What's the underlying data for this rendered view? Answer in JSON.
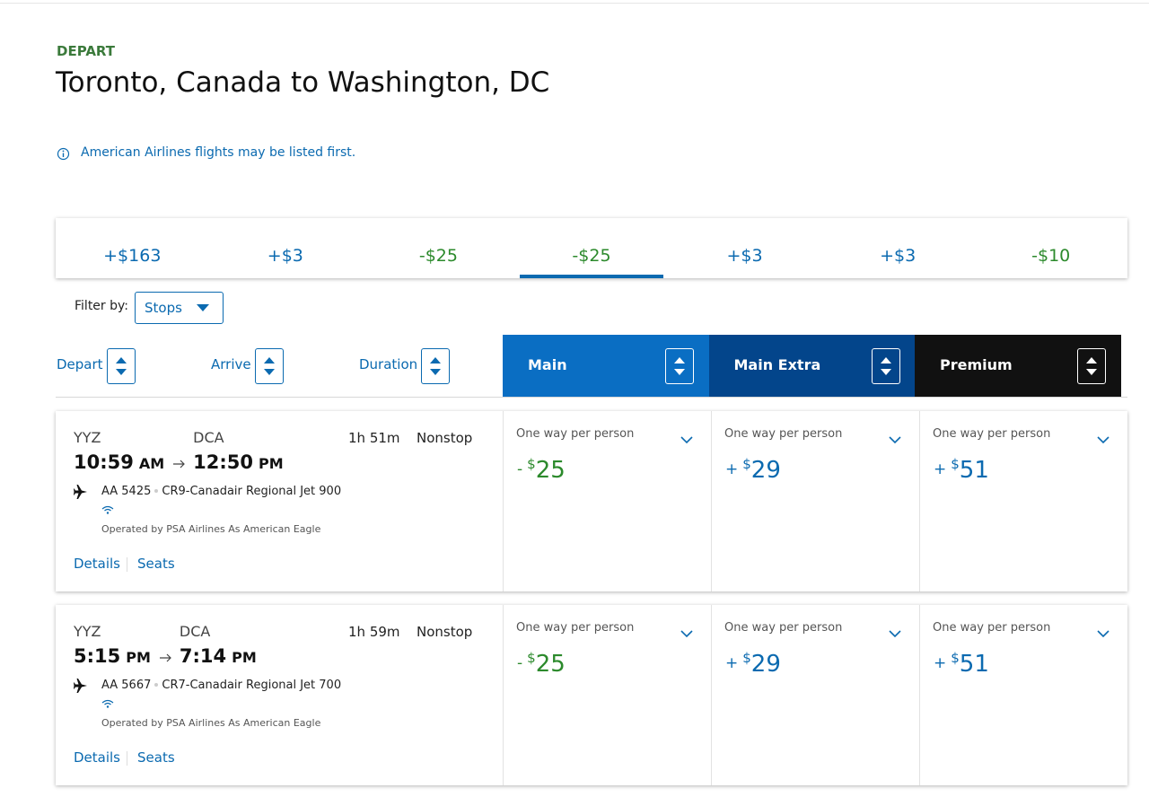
{
  "header": {
    "label": "DEPART",
    "title": "Toronto, Canada to Washington, DC"
  },
  "notice": "American Airlines flights may be listed first.",
  "date_tabs": {
    "prices": [
      "+$163",
      "+$3",
      "-$25",
      "-$25",
      "+$3",
      "+$3",
      "-$10"
    ],
    "selected": 3
  },
  "filter": {
    "label": "Filter by:",
    "value": "Stops"
  },
  "sort": [
    "Depart",
    "Arrive",
    "Duration"
  ],
  "cabins": [
    "Main",
    "Main Extra",
    "Premium"
  ],
  "flights": [
    {
      "origin": "YYZ",
      "destination": "DCA",
      "depart_time": "10:59",
      "depart_period": "AM",
      "arrive_time": "12:50",
      "arrive_period": "PM",
      "duration": "1h 51m",
      "stops": "Nonstop",
      "flight": "AA 5425",
      "aircraft": "CR9-Canadair Regional Jet 900",
      "operator": "Operated by PSA Airlines As American Eagle",
      "links": [
        "Details",
        "Seats"
      ],
      "fares": [
        {
          "label": "One way per person",
          "sign": "-",
          "currency": "$",
          "amount": "25"
        },
        {
          "label": "One way per person",
          "sign": "+",
          "currency": "$",
          "amount": "29"
        },
        {
          "label": "One way per person",
          "sign": "+",
          "currency": "$",
          "amount": "51"
        }
      ]
    },
    {
      "origin": "YYZ",
      "destination": "DCA",
      "depart_time": "5:15",
      "depart_period": "PM",
      "arrive_time": "7:14",
      "arrive_period": "PM",
      "duration": "1h 59m",
      "stops": "Nonstop",
      "flight": "AA 5667",
      "aircraft": "CR7-Canadair Regional Jet 700",
      "operator": "Operated by PSA Airlines As American Eagle",
      "links": [
        "Details",
        "Seats"
      ],
      "fares": [
        {
          "label": "One way per person",
          "sign": "-",
          "currency": "$",
          "amount": "25"
        },
        {
          "label": "One way per person",
          "sign": "+",
          "currency": "$",
          "amount": "29"
        },
        {
          "label": "One way per person",
          "sign": "+",
          "currency": "$",
          "amount": "51"
        }
      ]
    }
  ]
}
